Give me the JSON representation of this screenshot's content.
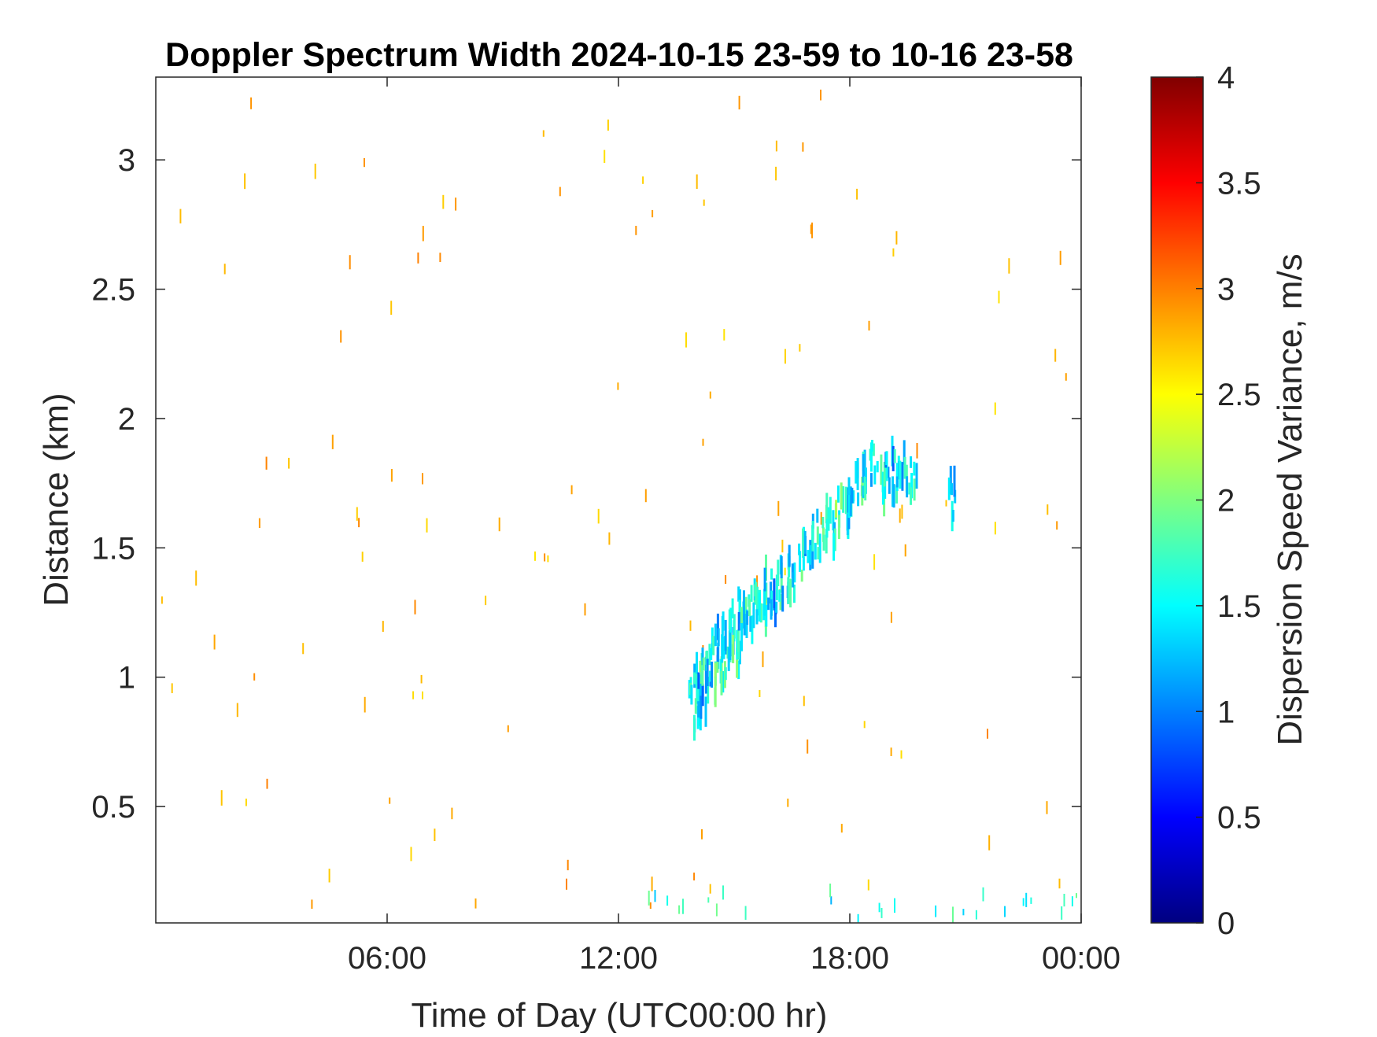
{
  "chart_data": {
    "type": "heatmap",
    "title": "Doppler Spectrum Width 2024-10-15 23-59 to 10-16 23-58",
    "xlabel": "Time of Day (UTC00:00 hr)",
    "ylabel": "Distance (km)",
    "colorbar_label": "Dispersion Speed Variance, m/s",
    "x_unit": "hours",
    "xlim": [
      0,
      24
    ],
    "ylim": [
      0.05,
      3.32
    ],
    "clim": [
      0,
      4
    ],
    "colormap": "jet",
    "x_ticks": [
      {
        "value": 6,
        "label": "06:00"
      },
      {
        "value": 12,
        "label": "12:00"
      },
      {
        "value": 18,
        "label": "18:00"
      },
      {
        "value": 24,
        "label": "00:00"
      }
    ],
    "y_ticks": [
      {
        "value": 0.5,
        "label": "0.5"
      },
      {
        "value": 1,
        "label": "1"
      },
      {
        "value": 1.5,
        "label": "1.5"
      },
      {
        "value": 2,
        "label": "2"
      },
      {
        "value": 2.5,
        "label": "2.5"
      },
      {
        "value": 3,
        "label": "3"
      }
    ],
    "colorbar_ticks": [
      {
        "value": 0,
        "label": "0"
      },
      {
        "value": 0.5,
        "label": "0.5"
      },
      {
        "value": 1,
        "label": "1"
      },
      {
        "value": 1.5,
        "label": "1.5"
      },
      {
        "value": 2,
        "label": "2"
      },
      {
        "value": 2.5,
        "label": "2.5"
      },
      {
        "value": 3,
        "label": "3"
      },
      {
        "value": 3.5,
        "label": "3.5"
      },
      {
        "value": 4,
        "label": "4"
      }
    ],
    "grid": false,
    "main_layer": {
      "description_values": "rising band of returns, time (hours) vs distance (km) with spectrum width (m/s)",
      "points": [
        [
          13.9,
          0.95,
          1.5
        ],
        [
          14.0,
          0.88,
          1.3
        ],
        [
          14.05,
          1.0,
          1.7
        ],
        [
          14.15,
          0.92,
          1.2
        ],
        [
          14.25,
          1.02,
          1.6
        ],
        [
          14.35,
          1.05,
          1.4
        ],
        [
          14.45,
          1.1,
          1.5
        ],
        [
          14.55,
          1.0,
          1.8
        ],
        [
          14.65,
          1.15,
          1.3
        ],
        [
          14.75,
          1.05,
          1.6
        ],
        [
          14.85,
          1.12,
          1.4
        ],
        [
          14.95,
          1.2,
          1.5
        ],
        [
          15.05,
          1.1,
          1.7
        ],
        [
          15.15,
          1.25,
          1.3
        ],
        [
          15.25,
          1.22,
          1.6
        ],
        [
          15.4,
          1.25,
          1.5
        ],
        [
          15.55,
          1.3,
          1.4
        ],
        [
          15.7,
          1.28,
          1.8
        ],
        [
          15.85,
          1.35,
          1.5
        ],
        [
          16.0,
          1.3,
          1.2
        ],
        [
          16.15,
          1.36,
          1.6
        ],
        [
          16.3,
          1.38,
          1.4
        ],
        [
          16.5,
          1.4,
          1.5
        ],
        [
          16.7,
          1.45,
          1.7
        ],
        [
          16.9,
          1.5,
          1.3
        ],
        [
          17.1,
          1.55,
          1.5
        ],
        [
          17.3,
          1.6,
          1.6
        ],
        [
          17.5,
          1.58,
          1.4
        ],
        [
          17.7,
          1.65,
          1.8
        ],
        [
          17.9,
          1.62,
          1.5
        ],
        [
          18.0,
          1.72,
          1.3
        ],
        [
          18.2,
          1.75,
          1.6
        ],
        [
          18.4,
          1.78,
          1.5
        ],
        [
          18.6,
          1.82,
          1.4
        ],
        [
          18.8,
          1.76,
          1.7
        ],
        [
          19.0,
          1.8,
          1.2
        ],
        [
          19.15,
          1.78,
          1.5
        ],
        [
          19.35,
          1.8,
          1.4
        ],
        [
          19.6,
          1.76,
          1.5
        ],
        [
          20.6,
          1.7,
          1.4
        ]
      ]
    },
    "scatter_layer": {
      "value_range": [
        2.6,
        3.0
      ],
      "count": 130
    },
    "near_ground_layer": {
      "value_range": [
        1.2,
        2.0
      ],
      "x_range": [
        11.0,
        24.0
      ],
      "y_range": [
        0.05,
        0.15
      ]
    }
  }
}
